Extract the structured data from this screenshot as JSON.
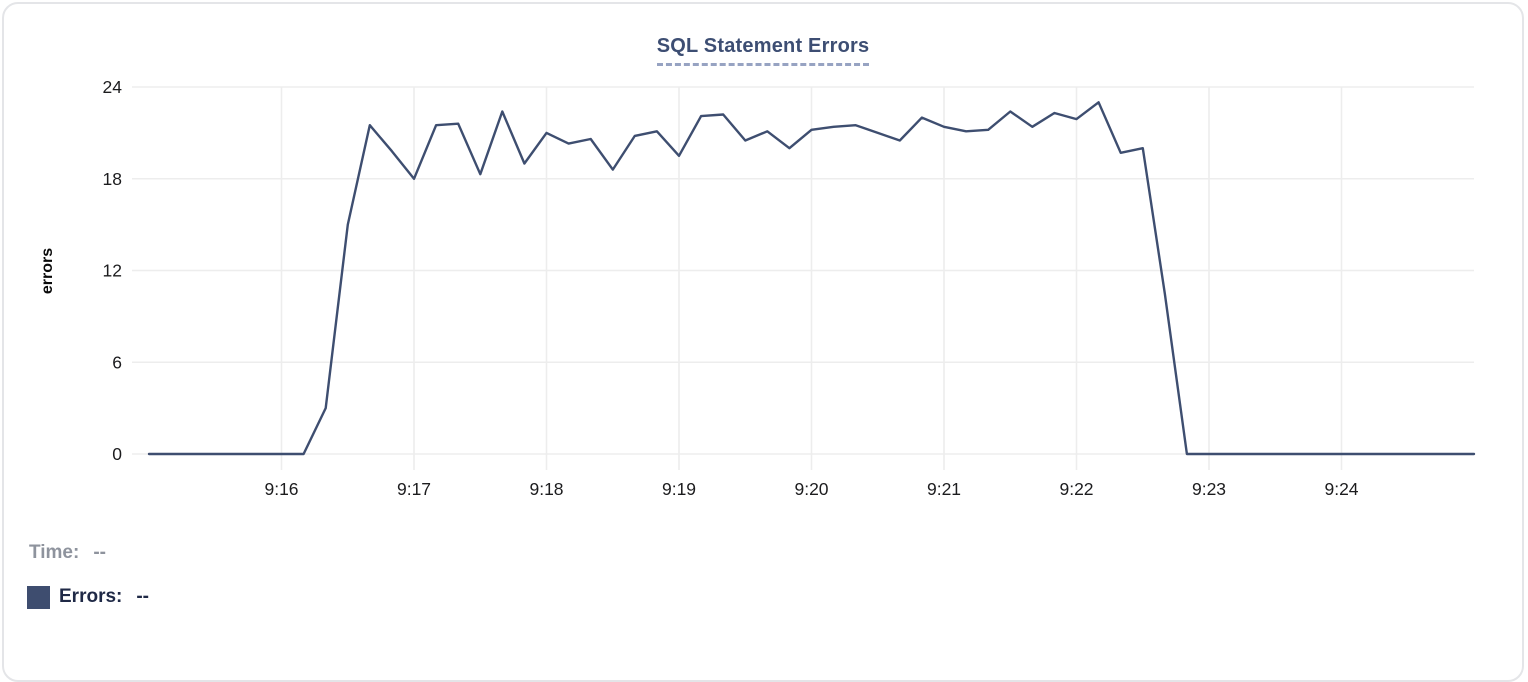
{
  "card": {
    "type": "metric-chart-panel"
  },
  "chart_data": {
    "type": "line",
    "title": "SQL Statement Errors",
    "xlabel": "",
    "ylabel": "errors",
    "ylim": [
      0,
      24
    ],
    "yticks": [
      0,
      6,
      12,
      18,
      24
    ],
    "xtick_labels": [
      "9:16",
      "9:17",
      "9:18",
      "9:19",
      "9:20",
      "9:21",
      "9:22",
      "9:23",
      "9:24"
    ],
    "x_start": "9:15:00",
    "x_end": "9:25:00",
    "point_interval_seconds": 10,
    "grid": true,
    "legend_position": "bottom-left",
    "colors": {
      "line": "#3e4e70",
      "grid": "#ededed",
      "title": "#3d4e73",
      "title_underline": "#97a3c2",
      "tick_text": "#1c1c1e",
      "legend_time_text": "#8e939d",
      "legend_errors_text": "#1f2946",
      "swatch": "#3e4d6f"
    },
    "series": [
      {
        "name": "Errors",
        "color": "#3e4e70",
        "values": [
          0,
          0,
          0,
          0,
          0,
          0,
          0,
          0,
          3,
          15,
          21.5,
          19.8,
          18,
          21.5,
          21.6,
          18.3,
          22.4,
          19,
          21,
          20.3,
          20.6,
          18.6,
          20.8,
          21.1,
          19.5,
          22.1,
          22.2,
          20.5,
          21.1,
          20,
          21.2,
          21.4,
          21.5,
          21,
          20.5,
          22,
          21.4,
          21.1,
          21.2,
          22.4,
          21.4,
          22.3,
          21.9,
          23,
          19.7,
          20,
          10.5,
          0,
          0,
          0,
          0,
          0,
          0,
          0,
          0,
          0,
          0,
          0,
          0,
          0,
          0
        ]
      }
    ]
  },
  "legend": {
    "time_label": "Time:",
    "time_value": "--",
    "errors_label": "Errors:",
    "errors_value": "--"
  }
}
